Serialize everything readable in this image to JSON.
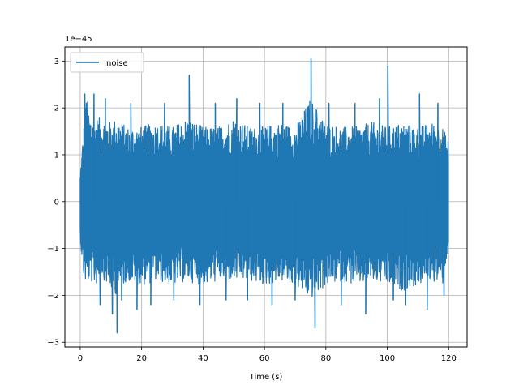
{
  "chart_data": {
    "type": "line",
    "title": "",
    "xlabel": "Time (s)",
    "ylabel": "",
    "y_scale_label": "1e−45",
    "xlim": [
      -5,
      126
    ],
    "ylim": [
      -3.1,
      3.3
    ],
    "xticks": [
      0,
      20,
      40,
      60,
      80,
      100,
      120
    ],
    "xtick_labels": [
      "0",
      "20",
      "40",
      "60",
      "80",
      "100",
      "120"
    ],
    "yticks": [
      -3,
      -2,
      -1,
      0,
      1,
      2,
      3
    ],
    "ytick_labels": [
      "−3",
      "−2",
      "−1",
      "0",
      "1",
      "2",
      "3"
    ],
    "grid": true,
    "legend": {
      "placement": "upper-left",
      "entries": [
        "noise"
      ]
    },
    "series": [
      {
        "name": "noise",
        "color": "#1f77b4",
        "x_range": [
          0,
          120
        ],
        "envelope": {
          "x": [
            0,
            1,
            2,
            3,
            5,
            7,
            10,
            12,
            15,
            20,
            25,
            30,
            35,
            40,
            45,
            50,
            55,
            60,
            65,
            70,
            75,
            80,
            85,
            90,
            95,
            100,
            105,
            110,
            115,
            118,
            120
          ],
          "max": [
            0.6,
            1.5,
            2.3,
            1.9,
            1.8,
            1.8,
            1.7,
            1.8,
            1.6,
            1.6,
            1.7,
            1.6,
            1.8,
            1.6,
            1.6,
            1.8,
            1.6,
            1.6,
            1.7,
            1.6,
            2.2,
            1.7,
            1.6,
            1.6,
            1.7,
            1.6,
            1.7,
            1.6,
            1.7,
            1.6,
            1.3
          ],
          "min": [
            -0.8,
            -1.6,
            -1.8,
            -1.7,
            -1.8,
            -1.6,
            -1.9,
            -2.0,
            -1.7,
            -1.8,
            -1.7,
            -1.8,
            -1.7,
            -1.8,
            -1.7,
            -1.7,
            -1.7,
            -1.8,
            -1.7,
            -1.8,
            -2.1,
            -1.8,
            -1.7,
            -1.8,
            -1.7,
            -1.8,
            -1.9,
            -1.8,
            -1.7,
            -1.8,
            -1.0
          ]
        },
        "spikes": [
          {
            "x": 1.5,
            "y": 2.3
          },
          {
            "x": 4.5,
            "y": 2.3
          },
          {
            "x": 6.5,
            "y": -2.2
          },
          {
            "x": 8.2,
            "y": 2.2
          },
          {
            "x": 10.5,
            "y": -2.4
          },
          {
            "x": 12.0,
            "y": -2.8
          },
          {
            "x": 13.5,
            "y": -2.1
          },
          {
            "x": 16.5,
            "y": 2.1
          },
          {
            "x": 18.5,
            "y": -2.3
          },
          {
            "x": 23.0,
            "y": -2.2
          },
          {
            "x": 27.5,
            "y": 2.1
          },
          {
            "x": 30.5,
            "y": -2.1
          },
          {
            "x": 35.5,
            "y": 2.7
          },
          {
            "x": 39.0,
            "y": -2.2
          },
          {
            "x": 44.0,
            "y": 2.1
          },
          {
            "x": 47.5,
            "y": -2.1
          },
          {
            "x": 51.0,
            "y": 2.2
          },
          {
            "x": 54.5,
            "y": -2.1
          },
          {
            "x": 58.5,
            "y": 2.1
          },
          {
            "x": 62.5,
            "y": -2.2
          },
          {
            "x": 66.0,
            "y": 2.1
          },
          {
            "x": 70.0,
            "y": -2.1
          },
          {
            "x": 75.2,
            "y": 3.05
          },
          {
            "x": 76.5,
            "y": -2.7
          },
          {
            "x": 81.0,
            "y": 2.1
          },
          {
            "x": 85.0,
            "y": -2.2
          },
          {
            "x": 89.5,
            "y": 2.1
          },
          {
            "x": 93.0,
            "y": -2.4
          },
          {
            "x": 97.5,
            "y": 2.2
          },
          {
            "x": 100.2,
            "y": 2.9
          },
          {
            "x": 102.0,
            "y": -2.1
          },
          {
            "x": 106.0,
            "y": -2.2
          },
          {
            "x": 110.5,
            "y": 2.3
          },
          {
            "x": 113.0,
            "y": -2.3
          },
          {
            "x": 116.5,
            "y": 2.1
          },
          {
            "x": 118.5,
            "y": -2.0
          }
        ]
      }
    ]
  }
}
